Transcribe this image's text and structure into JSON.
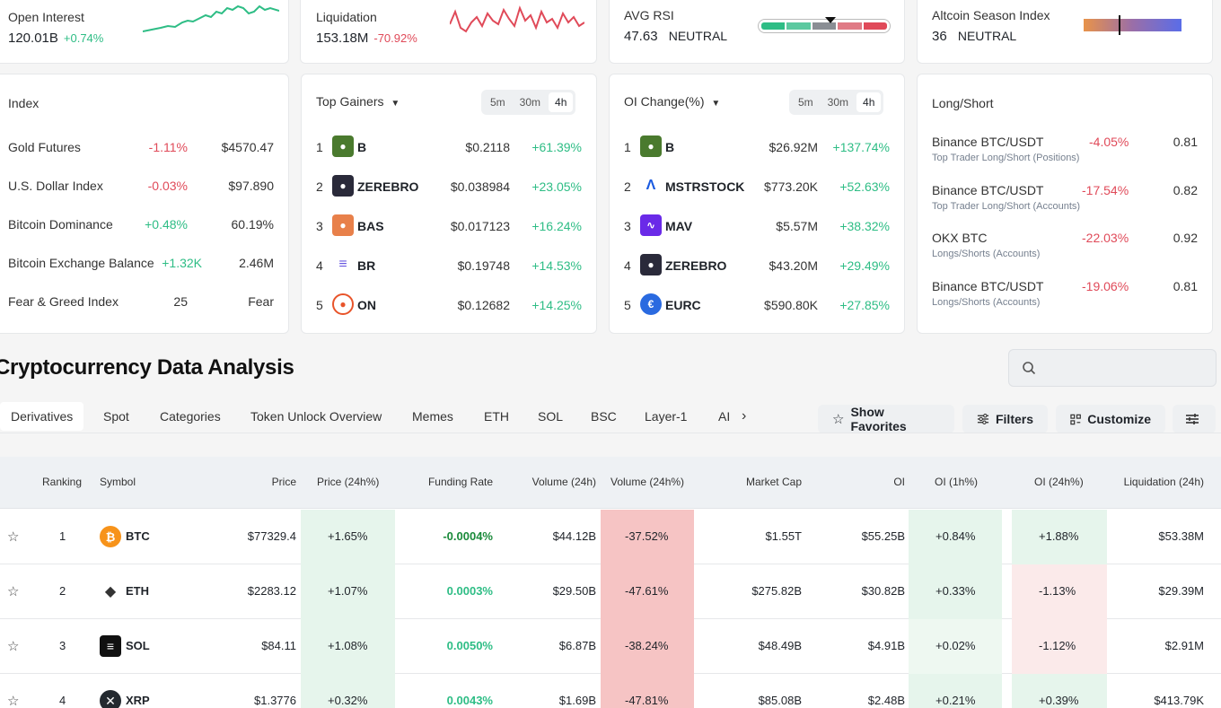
{
  "top_stats": {
    "open_interest": {
      "label": "Open Interest",
      "value": "120.01B",
      "change": "+0.74%"
    },
    "liquidation": {
      "label": "Liquidation",
      "value": "153.18M",
      "change": "-70.92%"
    },
    "avg_rsi": {
      "label": "AVG RSI",
      "value": "47.63",
      "status": "NEUTRAL",
      "level": 0.56
    },
    "altcoin_season": {
      "label": "Altcoin Season Index",
      "value": "36",
      "status": "NEUTRAL",
      "level": 0.36
    }
  },
  "index_card": {
    "title": "Index",
    "rows": [
      {
        "name": "Gold Futures",
        "change": "-1.11%",
        "value": "$4570.47"
      },
      {
        "name": "U.S. Dollar Index",
        "change": "-0.03%",
        "value": "$97.890"
      },
      {
        "name": "Bitcoin Dominance",
        "change": "+0.48%",
        "value": "60.19%"
      },
      {
        "name": "Bitcoin Exchange Balance",
        "change": "+1.32K",
        "value": "2.46M"
      },
      {
        "name": "Fear & Greed Index",
        "change": "25",
        "value": "Fear"
      }
    ]
  },
  "gainers_card": {
    "title": "Top Gainers",
    "intervals": [
      "5m",
      "30m",
      "4h"
    ],
    "active_interval": "4h",
    "rows": [
      {
        "rank": "1",
        "symbol": "B",
        "price": "$0.2118",
        "change": "+61.39%"
      },
      {
        "rank": "2",
        "symbol": "ZEREBRO",
        "price": "$0.038984",
        "change": "+23.05%"
      },
      {
        "rank": "3",
        "symbol": "BAS",
        "price": "$0.017123",
        "change": "+16.24%"
      },
      {
        "rank": "4",
        "symbol": "BR",
        "price": "$0.19748",
        "change": "+14.53%"
      },
      {
        "rank": "5",
        "symbol": "ON",
        "price": "$0.12682",
        "change": "+14.25%"
      }
    ]
  },
  "oi_card": {
    "title": "OI Change(%)",
    "intervals": [
      "5m",
      "30m",
      "4h"
    ],
    "active_interval": "4h",
    "rows": [
      {
        "rank": "1",
        "symbol": "B",
        "oi": "$26.92M",
        "change": "+137.74%"
      },
      {
        "rank": "2",
        "symbol": "MSTRSTOCK",
        "oi": "$773.20K",
        "change": "+52.63%"
      },
      {
        "rank": "3",
        "symbol": "MAV",
        "oi": "$5.57M",
        "change": "+38.32%"
      },
      {
        "rank": "4",
        "symbol": "ZEREBRO",
        "oi": "$43.20M",
        "change": "+29.49%"
      },
      {
        "rank": "5",
        "symbol": "EURC",
        "oi": "$590.80K",
        "change": "+27.85%"
      }
    ]
  },
  "ls_card": {
    "title": "Long/Short",
    "rows": [
      {
        "name": "Binance BTC/USDT",
        "sub": "Top Trader Long/Short (Positions)",
        "change": "-4.05%",
        "ratio": "0.81"
      },
      {
        "name": "Binance BTC/USDT",
        "sub": "Top Trader Long/Short (Accounts)",
        "change": "-17.54%",
        "ratio": "0.82"
      },
      {
        "name": "OKX BTC",
        "sub": "Longs/Shorts (Accounts)",
        "change": "-22.03%",
        "ratio": "0.92"
      },
      {
        "name": "Binance BTC/USDT",
        "sub": "Longs/Shorts (Accounts)",
        "change": "-19.06%",
        "ratio": "0.81"
      }
    ]
  },
  "section": {
    "title": "Cryptocurrency Data Analysis",
    "search_placeholder": ""
  },
  "tabs": [
    "Derivatives",
    "Spot",
    "Categories",
    "Token Unlock Overview",
    "Memes",
    "ETH",
    "SOL",
    "BSC",
    "Layer-1",
    "AI"
  ],
  "active_tab": "Derivatives",
  "toolbar": {
    "favorites": "Show Favorites",
    "filters": "Filters",
    "customize": "Customize"
  },
  "table": {
    "headers": [
      "Ranking",
      "Symbol",
      "Price",
      "Price (24h%)",
      "Funding Rate",
      "Volume (24h)",
      "Volume (24h%)",
      "Market Cap",
      "OI",
      "OI (1h%)",
      "OI (24h%)",
      "Liquidation (24h)"
    ],
    "rows": [
      {
        "rank": "1",
        "symbol": "BTC",
        "price": "$77329.4",
        "price_chg": "+1.65%",
        "funding": "-0.0004%",
        "volume": "$44.12B",
        "volume_chg": "-37.52%",
        "mcap": "$1.55T",
        "oi": "$55.25B",
        "oi_1h": "+0.84%",
        "oi_24h": "+1.88%",
        "liq": "$53.38M"
      },
      {
        "rank": "2",
        "symbol": "ETH",
        "price": "$2283.12",
        "price_chg": "+1.07%",
        "funding": "0.0003%",
        "volume": "$29.50B",
        "volume_chg": "-47.61%",
        "mcap": "$275.82B",
        "oi": "$30.82B",
        "oi_1h": "+0.33%",
        "oi_24h": "-1.13%",
        "liq": "$29.39M"
      },
      {
        "rank": "3",
        "symbol": "SOL",
        "price": "$84.11",
        "price_chg": "+1.08%",
        "funding": "0.0050%",
        "volume": "$6.87B",
        "volume_chg": "-38.24%",
        "mcap": "$48.49B",
        "oi": "$4.91B",
        "oi_1h": "+0.02%",
        "oi_24h": "-1.12%",
        "liq": "$2.91M"
      },
      {
        "rank": "4",
        "symbol": "XRP",
        "price": "$1.3776",
        "price_chg": "+0.32%",
        "funding": "0.0043%",
        "volume": "$1.69B",
        "volume_chg": "-47.81%",
        "mcap": "$85.08B",
        "oi": "$2.48B",
        "oi_1h": "+0.21%",
        "oi_24h": "+0.39%",
        "liq": "$413.79K"
      }
    ]
  },
  "colors": {
    "positive": "#2ebd85",
    "negative": "#e04a59",
    "accent_bg": "#eef0f2"
  }
}
